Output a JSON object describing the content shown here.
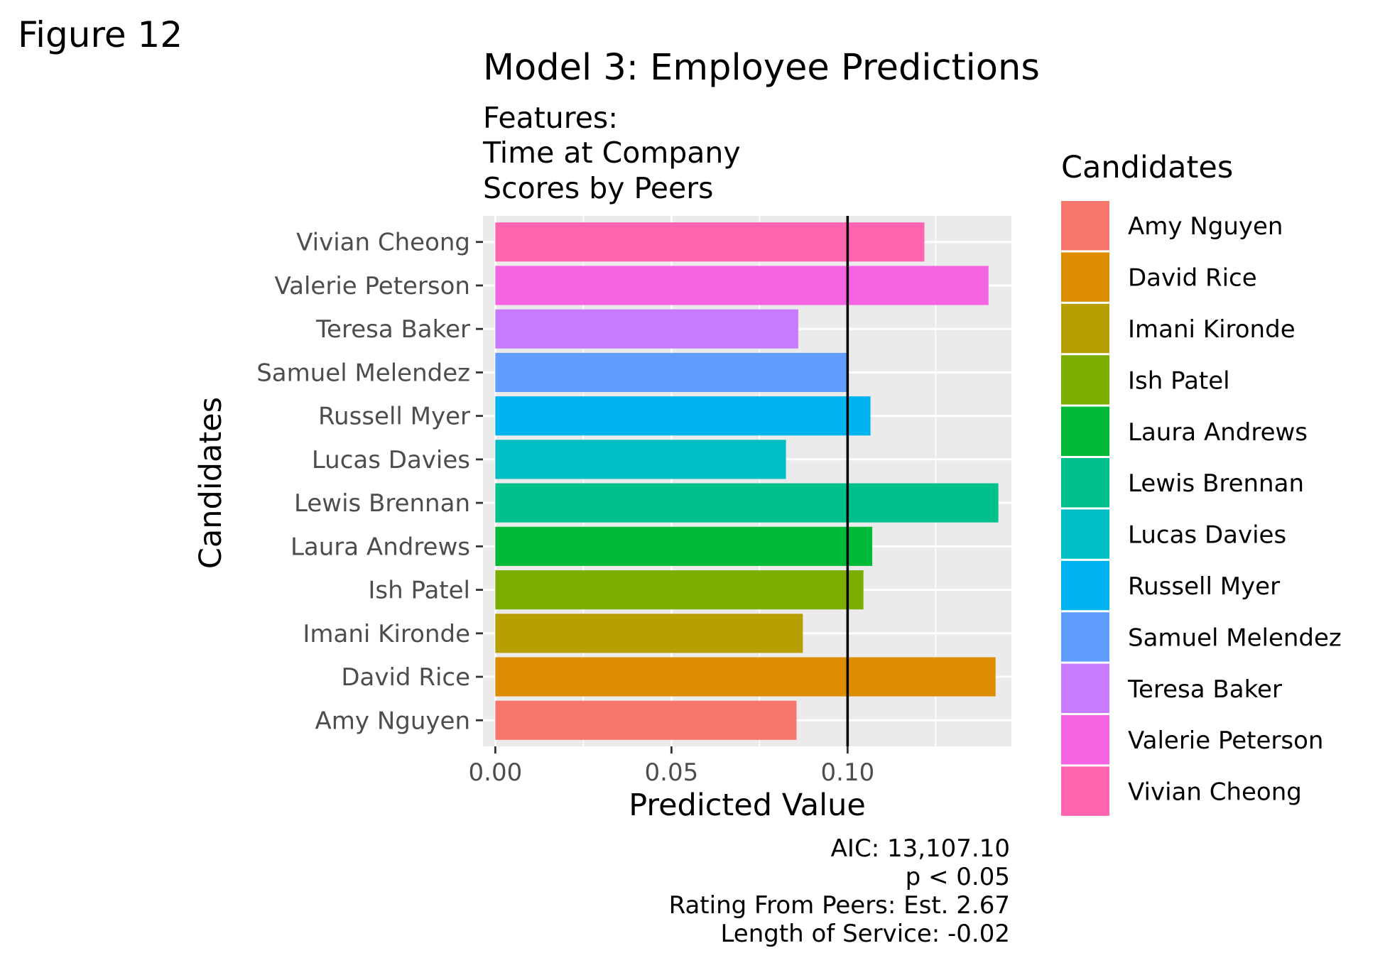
{
  "figure_label": "Figure 12",
  "chart_data": {
    "type": "bar",
    "orientation": "horizontal",
    "title": "Model 3: Employee Predictions",
    "subtitle": [
      "Features:",
      "Time at Company",
      "Scores by Peers"
    ],
    "xlabel": "Predicted Value",
    "ylabel": "Candidates",
    "xlim": [
      -0.0035,
      0.1465
    ],
    "xticks": [
      0.0,
      0.05,
      0.1
    ],
    "xtick_labels": [
      "0.00",
      "0.05",
      "0.10"
    ],
    "grid": true,
    "reference_line": 0.1,
    "categories": [
      "Amy Nguyen",
      "David Rice",
      "Imani Kironde",
      "Ish Patel",
      "Laura Andrews",
      "Lewis Brennan",
      "Lucas Davies",
      "Russell Myer",
      "Samuel Melendez",
      "Teresa Baker",
      "Valerie Peterson",
      "Vivian Cheong"
    ],
    "values": [
      0.0855,
      0.142,
      0.0873,
      0.1045,
      0.107,
      0.1428,
      0.0825,
      0.1065,
      0.1003,
      0.086,
      0.14,
      0.1218
    ],
    "colors": [
      "#F8766D",
      "#DE8C00",
      "#B79F00",
      "#7CAE00",
      "#00BA38",
      "#00C08B",
      "#00BFC4",
      "#00B4F0",
      "#619CFF",
      "#C77CFF",
      "#F564E3",
      "#FF64B0"
    ],
    "legend": {
      "title": "Candidates",
      "position": "right",
      "entries": [
        "Amy Nguyen",
        "David Rice",
        "Imani Kironde",
        "Ish Patel",
        "Laura Andrews",
        "Lewis Brennan",
        "Lucas Davies",
        "Russell Myer",
        "Samuel Melendez",
        "Teresa Baker",
        "Valerie Peterson",
        "Vivian Cheong"
      ]
    },
    "caption": [
      "AIC: 13,107.10",
      "p < 0.05",
      "Rating From Peers: Est. 2.67",
      "Length of Service: -0.02"
    ]
  }
}
